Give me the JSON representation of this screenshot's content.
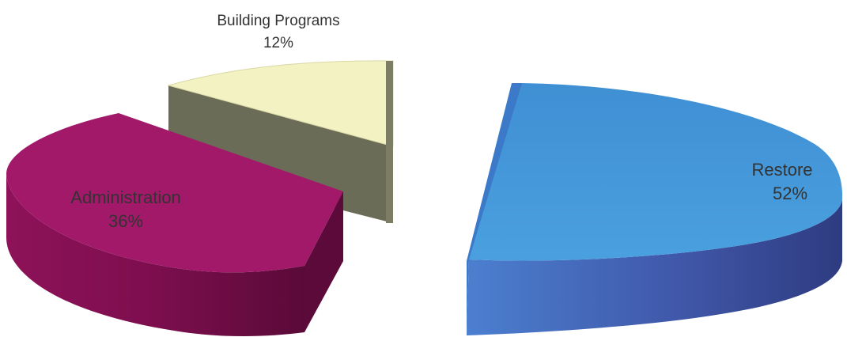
{
  "chart_data": {
    "type": "pie",
    "style": "3d-exploded",
    "slices": [
      {
        "label": "Restore",
        "value": 52,
        "value_label": "52%",
        "top_color": "#4597d6",
        "side_color": "#3a4a94"
      },
      {
        "label": "Administration",
        "value": 36,
        "value_label": "36%",
        "top_color": "#a01a68",
        "side_color": "#6a0c42"
      },
      {
        "label": "Building Programs",
        "value": 12,
        "value_label": "12%",
        "top_color": "#f3f2c2",
        "side_color": "#6c6c58"
      }
    ]
  }
}
